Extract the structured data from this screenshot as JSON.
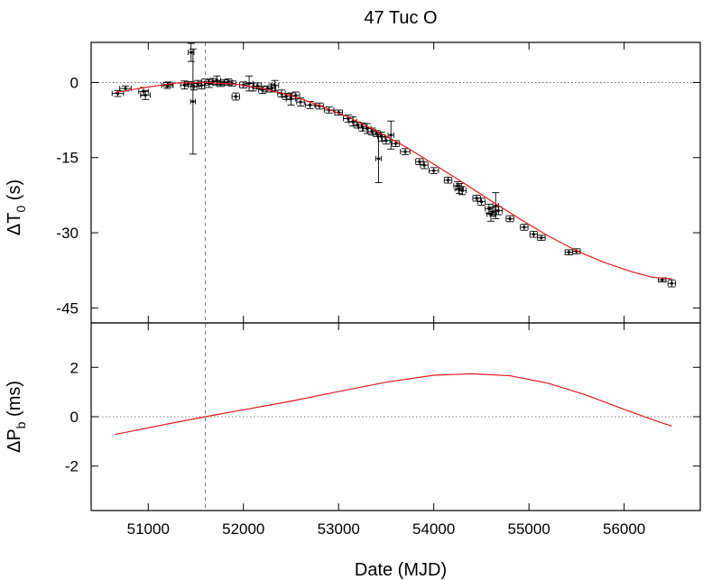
{
  "chart_data": [
    {
      "type": "scatter",
      "title": "47 Tuc O",
      "xlabel": "",
      "ylabel_main": "ΔT",
      "ylabel_sub": "0",
      "ylabel_unit": " (s)",
      "xlim": [
        50400,
        56800
      ],
      "ylim": [
        -48,
        8
      ],
      "yticks": [
        0,
        -15,
        -30,
        -45
      ],
      "reference_mjd": 51600,
      "zero_line": true,
      "series": [
        {
          "points": [
            [
              50680,
              -2.2,
              0.6,
              60
            ],
            [
              50760,
              -1.2,
              0.5,
              60
            ],
            [
              50950,
              -1.8,
              0.8,
              50
            ],
            [
              50970,
              -2.5,
              0.9,
              50
            ],
            [
              51200,
              -0.6,
              0.6,
              60
            ],
            [
              51210,
              -0.4,
              0.5,
              50
            ],
            [
              51380,
              -0.5,
              0.8,
              40
            ],
            [
              51420,
              -0.3,
              0.5,
              40
            ],
            [
              51450,
              6.0,
              1.8,
              30
            ],
            [
              51470,
              -3.8,
              10.5,
              25
            ],
            [
              51480,
              -0.8,
              0.7,
              30
            ],
            [
              51520,
              -0.2,
              0.6,
              40
            ],
            [
              51560,
              -0.6,
              0.7,
              30
            ],
            [
              51600,
              0.1,
              0.6,
              40
            ],
            [
              51640,
              -0.2,
              0.8,
              40
            ],
            [
              51680,
              0.2,
              0.6,
              50
            ],
            [
              51720,
              0.4,
              0.9,
              40
            ],
            [
              51760,
              -0.3,
              0.5,
              40
            ],
            [
              51800,
              0.0,
              0.5,
              50
            ],
            [
              51840,
              0.1,
              0.6,
              40
            ],
            [
              51880,
              -0.2,
              0.5,
              40
            ],
            [
              51920,
              -2.8,
              0.7,
              40
            ],
            [
              52000,
              -0.5,
              0.6,
              40
            ],
            [
              52060,
              -0.2,
              1.5,
              40
            ],
            [
              52100,
              -0.9,
              0.8,
              40
            ],
            [
              52150,
              -0.7,
              0.6,
              40
            ],
            [
              52200,
              -1.5,
              0.7,
              40
            ],
            [
              52250,
              -1.3,
              0.6,
              40
            ],
            [
              52300,
              -1.1,
              0.8,
              40
            ],
            [
              52330,
              -0.6,
              1.0,
              40
            ],
            [
              52400,
              -2.2,
              0.7,
              40
            ],
            [
              52450,
              -2.8,
              0.6,
              40
            ],
            [
              52500,
              -3.3,
              1.2,
              50
            ],
            [
              52550,
              -2.6,
              0.7,
              40
            ],
            [
              52600,
              -3.9,
              0.8,
              40
            ],
            [
              52700,
              -4.5,
              0.7,
              50
            ],
            [
              52800,
              -4.7,
              0.6,
              40
            ],
            [
              52900,
              -5.5,
              0.6,
              50
            ],
            [
              53000,
              -6.0,
              0.5,
              40
            ],
            [
              53100,
              -7.2,
              0.7,
              50
            ],
            [
              53150,
              -7.8,
              0.9,
              40
            ],
            [
              53200,
              -8.5,
              0.6,
              40
            ],
            [
              53250,
              -8.9,
              0.8,
              40
            ],
            [
              53300,
              -9.2,
              1.0,
              40
            ],
            [
              53350,
              -9.8,
              0.7,
              40
            ],
            [
              53400,
              -10.2,
              0.6,
              40
            ],
            [
              53420,
              -15.2,
              4.8,
              30
            ],
            [
              53450,
              -10.8,
              0.9,
              40
            ],
            [
              53500,
              -11.6,
              0.7,
              40
            ],
            [
              53550,
              -10.5,
              2.8,
              30
            ],
            [
              53600,
              -12.2,
              0.6,
              40
            ],
            [
              53700,
              -13.8,
              0.6,
              50
            ],
            [
              53850,
              -15.8,
              0.6,
              40
            ],
            [
              53900,
              -16.5,
              0.7,
              40
            ],
            [
              54000,
              -17.6,
              0.6,
              50
            ],
            [
              54150,
              -19.5,
              0.6,
              40
            ],
            [
              54250,
              -20.6,
              0.8,
              40
            ],
            [
              54270,
              -21.2,
              1.0,
              40
            ],
            [
              54300,
              -21.6,
              0.8,
              40
            ],
            [
              54450,
              -23.1,
              0.6,
              40
            ],
            [
              54500,
              -23.8,
              0.7,
              40
            ],
            [
              54580,
              -25.2,
              0.9,
              40
            ],
            [
              54600,
              -26.3,
              1.4,
              40
            ],
            [
              54620,
              -25.8,
              0.9,
              40
            ],
            [
              54650,
              -24.6,
              2.6,
              30
            ],
            [
              54680,
              -25.6,
              0.8,
              40
            ],
            [
              54800,
              -27.2,
              0.6,
              40
            ],
            [
              54950,
              -28.9,
              0.6,
              40
            ],
            [
              55050,
              -30.3,
              0.6,
              40
            ],
            [
              55130,
              -31.0,
              0.5,
              40
            ],
            [
              55420,
              -33.9,
              0.5,
              40
            ],
            [
              55500,
              -33.7,
              0.5,
              40
            ],
            [
              56400,
              -39.4,
              0.4,
              40
            ],
            [
              56500,
              -40.1,
              0.7,
              40
            ]
          ]
        }
      ],
      "fit_curve": [
        [
          50650,
          -2.0
        ],
        [
          51000,
          -0.9
        ],
        [
          51300,
          -0.1
        ],
        [
          51600,
          0.0
        ],
        [
          51900,
          -0.3
        ],
        [
          52200,
          -1.2
        ],
        [
          52500,
          -2.6
        ],
        [
          52800,
          -4.6
        ],
        [
          53100,
          -6.9
        ],
        [
          53400,
          -9.7
        ],
        [
          53700,
          -12.8
        ],
        [
          54000,
          -16.3
        ],
        [
          54300,
          -19.9
        ],
        [
          54600,
          -23.6
        ],
        [
          54900,
          -27.2
        ],
        [
          55200,
          -30.6
        ],
        [
          55500,
          -33.6
        ],
        [
          55800,
          -36.0
        ],
        [
          56100,
          -37.9
        ],
        [
          56300,
          -38.9
        ],
        [
          56500,
          -39.2
        ]
      ]
    },
    {
      "type": "line",
      "xlabel": "Date (MJD)",
      "ylabel_main": "ΔP",
      "ylabel_sub": "b",
      "ylabel_unit": " (ms)",
      "xlim": [
        50400,
        56800
      ],
      "ylim": [
        -3.8,
        3.8
      ],
      "yticks": [
        2,
        0,
        -2
      ],
      "xticks": [
        51000,
        52000,
        53000,
        54000,
        55000,
        56000
      ],
      "reference_mjd": 51600,
      "zero_line": true,
      "fit_curve": [
        [
          50650,
          -0.72
        ],
        [
          51000,
          -0.45
        ],
        [
          51300,
          -0.22
        ],
        [
          51600,
          0.0
        ],
        [
          52000,
          0.28
        ],
        [
          52500,
          0.63
        ],
        [
          53000,
          1.02
        ],
        [
          53500,
          1.4
        ],
        [
          54000,
          1.68
        ],
        [
          54400,
          1.74
        ],
        [
          54800,
          1.66
        ],
        [
          55200,
          1.36
        ],
        [
          55600,
          0.88
        ],
        [
          56000,
          0.3
        ],
        [
          56300,
          -0.12
        ],
        [
          56500,
          -0.38
        ]
      ]
    }
  ]
}
